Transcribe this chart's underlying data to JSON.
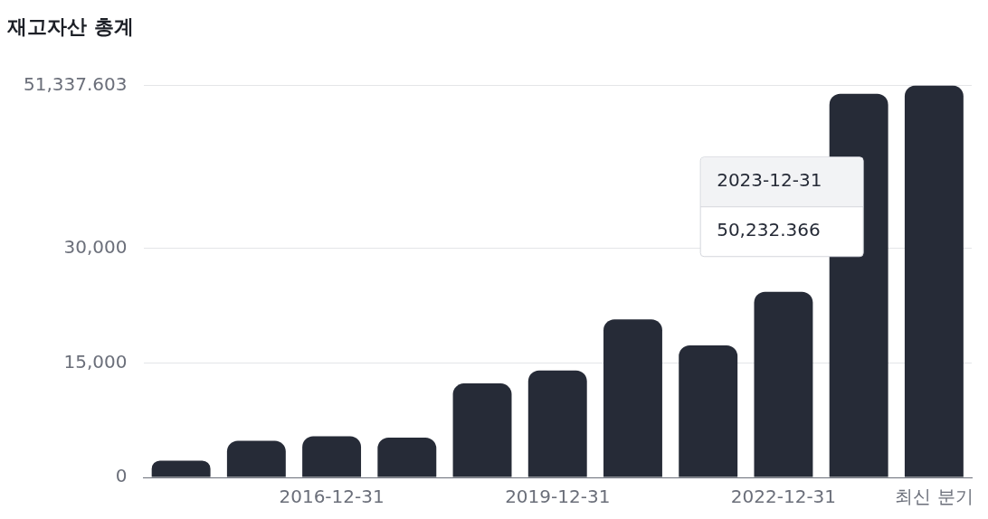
{
  "chart_data": {
    "type": "bar",
    "title": "재고자산 총계",
    "categories": [
      null,
      null,
      "2016-12-31",
      null,
      null,
      "2019-12-31",
      null,
      null,
      "2022-12-31",
      null,
      "최신 분기"
    ],
    "values": [
      2200,
      4800,
      5400,
      5200,
      12300,
      14000,
      20700,
      17300,
      24300,
      50232.366,
      51337.603
    ],
    "value_labels": [
      null,
      null,
      null,
      null,
      null,
      null,
      null,
      null,
      null,
      "50,232.366",
      null
    ],
    "annotations": [
      "2023-12-31"
    ],
    "color": "#262b37",
    "ylim": [
      0,
      51337.603
    ],
    "yticks": [
      0,
      {
        "value": 15000,
        "label": "15,000"
      },
      {
        "value": 30000,
        "label": "30,000"
      },
      {
        "value": 51337.603,
        "label": "51,337.603"
      }
    ],
    "grid": "y",
    "legend": false
  }
}
